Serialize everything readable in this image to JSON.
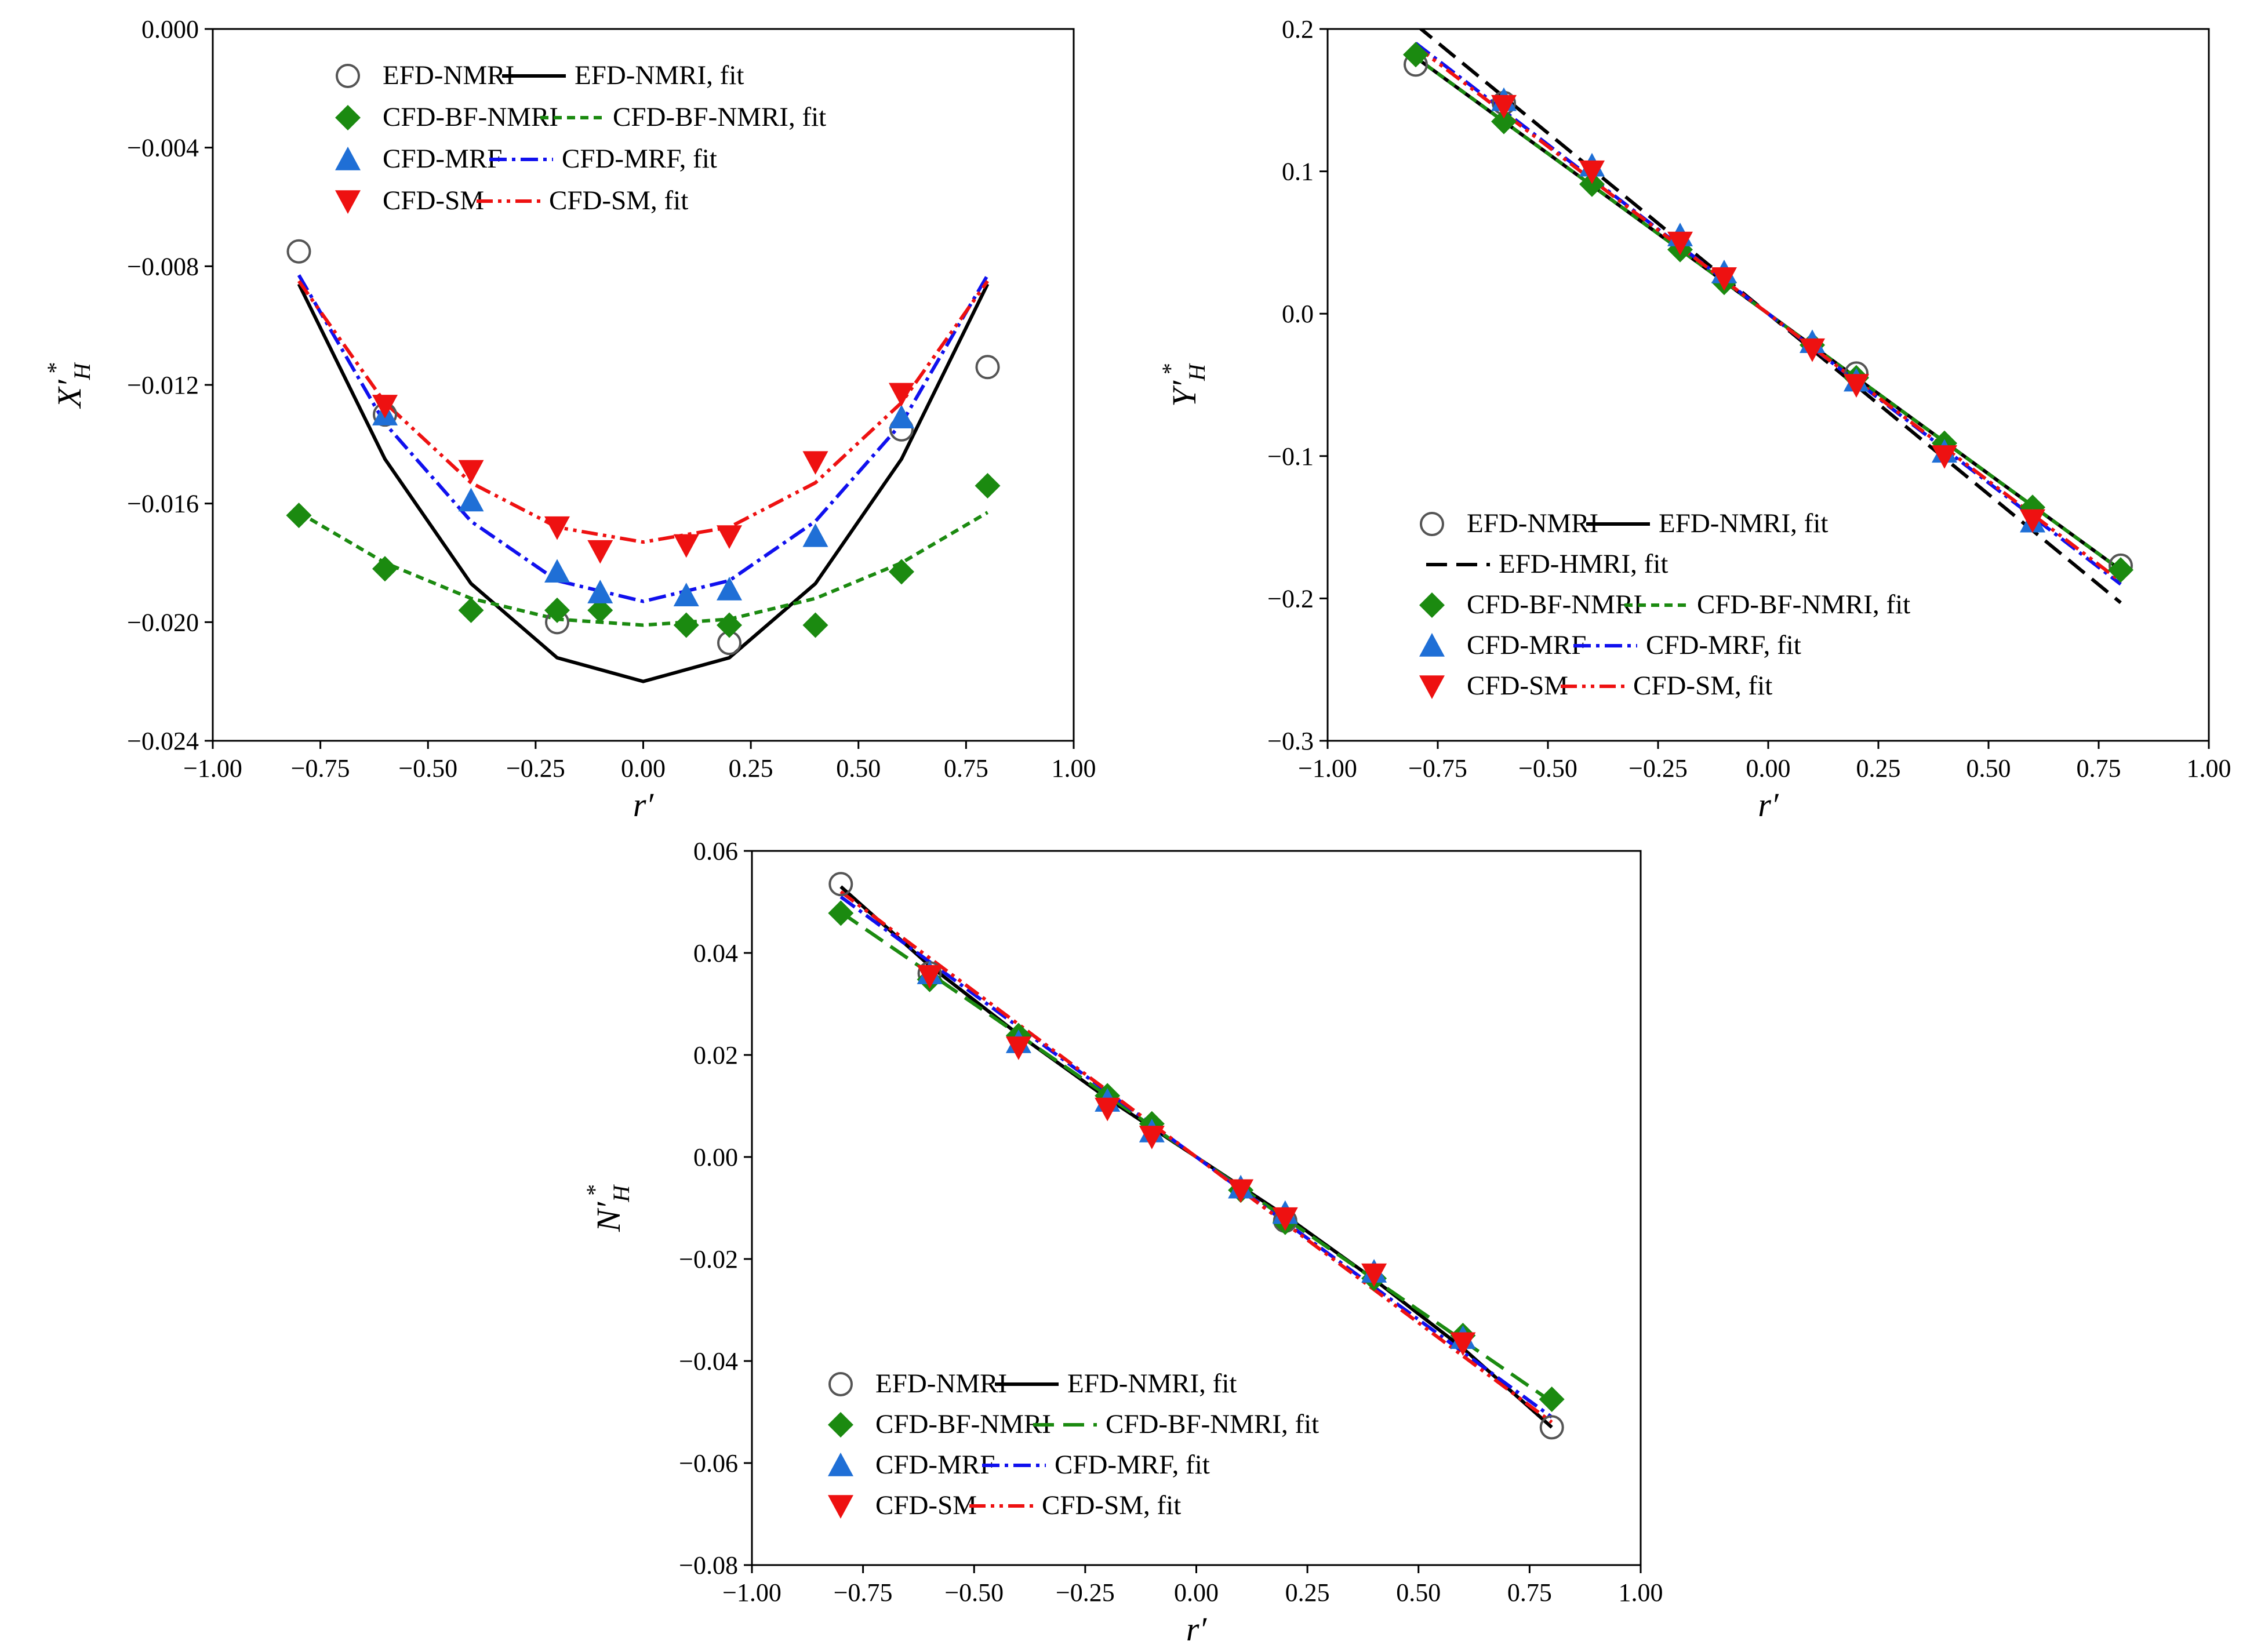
{
  "chart_data": [
    {
      "type": "scatter",
      "title": "",
      "xlabel": "r′",
      "ylabel": "X′H*",
      "xlim": [
        -1.0,
        1.0
      ],
      "ylim": [
        -0.024,
        0.0
      ],
      "grid": false,
      "legend_placement": "top-center",
      "xticks": [
        "−1.00",
        "−0.75",
        "−0.50",
        "−0.25",
        "0.00",
        "0.25",
        "0.50",
        "0.75",
        "1.00"
      ],
      "yticks": [
        "0.000",
        "−0.004",
        "−0.008",
        "−0.012",
        "−0.016",
        "−0.020",
        "−0.024"
      ],
      "legend": [
        "EFD-NMRI",
        "EFD-NMRI, fit",
        "CFD-BF-NMRI",
        "CFD-BF-NMRI, fit",
        "CFD-MRF",
        "CFD-MRF, fit",
        "CFD-SM",
        "CFD-SM, fit"
      ],
      "series": [
        {
          "name": "EFD-NMRI",
          "style": "scatter",
          "marker": "circle",
          "color": "#555555",
          "x": [
            -0.8,
            -0.6,
            -0.2,
            0.2,
            0.6,
            0.8
          ],
          "y": [
            -0.0075,
            -0.013,
            -0.02,
            -0.0207,
            -0.0135,
            -0.0114
          ]
        },
        {
          "name": "CFD-BF-NMRI",
          "style": "scatter",
          "marker": "diamond",
          "color": "#1b8a10",
          "x": [
            -0.8,
            -0.6,
            -0.4,
            -0.2,
            -0.1,
            0.1,
            0.2,
            0.4,
            0.6,
            0.8
          ],
          "y": [
            -0.0164,
            -0.0182,
            -0.0196,
            -0.0196,
            -0.0196,
            -0.0201,
            -0.0201,
            -0.0201,
            -0.0183,
            -0.0154
          ]
        },
        {
          "name": "CFD-MRF",
          "style": "scatter",
          "marker": "triangle-up",
          "color": "#1f6fd6",
          "x": [
            -0.6,
            -0.4,
            -0.2,
            -0.1,
            0.1,
            0.2,
            0.4,
            0.6
          ],
          "y": [
            -0.013,
            -0.0159,
            -0.0183,
            -0.019,
            -0.0191,
            -0.0189,
            -0.0171,
            -0.0131
          ]
        },
        {
          "name": "CFD-SM",
          "style": "scatter",
          "marker": "triangle-down",
          "color": "#ee1111",
          "x": [
            -0.6,
            -0.4,
            -0.2,
            -0.1,
            0.1,
            0.2,
            0.4,
            0.6
          ],
          "y": [
            -0.0127,
            -0.0149,
            -0.0168,
            -0.0176,
            -0.0174,
            -0.0171,
            -0.0146,
            -0.0123
          ]
        },
        {
          "name": "EFD-NMRI, fit",
          "style": "line",
          "dash": "solid",
          "color": "#000000",
          "x": [
            -0.8,
            -0.6,
            -0.4,
            -0.2,
            0.0,
            0.2,
            0.4,
            0.6,
            0.8
          ],
          "y": [
            -0.0086,
            -0.0145,
            -0.0187,
            -0.0212,
            -0.022,
            -0.0212,
            -0.0187,
            -0.0145,
            -0.0086
          ]
        },
        {
          "name": "CFD-BF-NMRI, fit",
          "style": "line",
          "dash": "short",
          "color": "#1b8a10",
          "x": [
            -0.8,
            -0.6,
            -0.4,
            -0.2,
            0.0,
            0.2,
            0.4,
            0.6,
            0.8
          ],
          "y": [
            -0.0163,
            -0.018,
            -0.0192,
            -0.0199,
            -0.0201,
            -0.0199,
            -0.0192,
            -0.018,
            -0.0163
          ]
        },
        {
          "name": "CFD-MRF, fit",
          "style": "line",
          "dash": "dashdot",
          "color": "#1010ee",
          "x": [
            -0.8,
            -0.6,
            -0.4,
            -0.2,
            0.0,
            0.2,
            0.4,
            0.6,
            0.8
          ],
          "y": [
            -0.0083,
            -0.0133,
            -0.0166,
            -0.0186,
            -0.0193,
            -0.0186,
            -0.0166,
            -0.0133,
            -0.0083
          ]
        },
        {
          "name": "CFD-SM, fit",
          "style": "line",
          "dash": "dashdotdot",
          "color": "#ee1111",
          "x": [
            -0.8,
            -0.6,
            -0.4,
            -0.2,
            0.0,
            0.2,
            0.4,
            0.6,
            0.8
          ],
          "y": [
            -0.0085,
            -0.0126,
            -0.0153,
            -0.0168,
            -0.0173,
            -0.0168,
            -0.0153,
            -0.0126,
            -0.0085
          ]
        }
      ]
    },
    {
      "type": "scatter",
      "title": "",
      "xlabel": "r′",
      "ylabel": "Y′H*",
      "xlim": [
        -1.0,
        1.0
      ],
      "ylim": [
        -0.3,
        0.2
      ],
      "grid": false,
      "legend_placement": "bottom-left",
      "xticks": [
        "−1.00",
        "−0.75",
        "−0.50",
        "−0.25",
        "0.00",
        "0.25",
        "0.50",
        "0.75",
        "1.00"
      ],
      "yticks": [
        "0.2",
        "0.1",
        "0.0",
        "−0.1",
        "−0.2",
        "−0.3"
      ],
      "legend": [
        "EFD-NMRI",
        "EFD-NMRI, fit",
        "EFD-HMRI, fit",
        "CFD-BF-NMRI",
        "CFD-BF-NMRI, fit",
        "CFD-MRF",
        "CFD-MRF, fit",
        "CFD-SM",
        "CFD-SM, fit"
      ],
      "series": [
        {
          "name": "EFD-NMRI",
          "style": "scatter",
          "marker": "circle",
          "color": "#555555",
          "x": [
            -0.8,
            -0.6,
            0.2,
            0.8
          ],
          "y": [
            0.175,
            0.148,
            -0.042,
            -0.177
          ]
        },
        {
          "name": "CFD-BF-NMRI",
          "style": "scatter",
          "marker": "diamond",
          "color": "#1b8a10",
          "x": [
            -0.8,
            -0.6,
            -0.4,
            -0.2,
            -0.1,
            0.1,
            0.2,
            0.4,
            0.6,
            0.8
          ],
          "y": [
            0.182,
            0.135,
            0.091,
            0.045,
            0.022,
            -0.022,
            -0.045,
            -0.091,
            -0.136,
            -0.18
          ]
        },
        {
          "name": "CFD-MRF",
          "style": "scatter",
          "marker": "triangle-up",
          "color": "#1f6fd6",
          "x": [
            -0.6,
            -0.4,
            -0.2,
            -0.1,
            0.1,
            0.2,
            0.4,
            0.6
          ],
          "y": [
            0.15,
            0.104,
            0.055,
            0.029,
            -0.02,
            -0.047,
            -0.097,
            -0.146
          ]
        },
        {
          "name": "CFD-SM",
          "style": "scatter",
          "marker": "triangle-down",
          "color": "#ee1111",
          "x": [
            -0.6,
            -0.4,
            -0.2,
            -0.1,
            0.1,
            0.2,
            0.4,
            0.6
          ],
          "y": [
            0.146,
            0.1,
            0.05,
            0.025,
            -0.025,
            -0.05,
            -0.1,
            -0.145
          ]
        },
        {
          "name": "EFD-NMRI, fit",
          "style": "line",
          "dash": "solid",
          "color": "#000000",
          "x": [
            -0.8,
            0.8
          ],
          "y": [
            0.18,
            -0.18
          ]
        },
        {
          "name": "EFD-HMRI, fit",
          "style": "line",
          "dash": "longdash",
          "color": "#000000",
          "x": [
            -0.8,
            0.8
          ],
          "y": [
            0.203,
            -0.203
          ]
        },
        {
          "name": "CFD-BF-NMRI, fit",
          "style": "line",
          "dash": "short",
          "color": "#1b8a10",
          "x": [
            -0.8,
            0.8
          ],
          "y": [
            0.18,
            -0.18
          ]
        },
        {
          "name": "CFD-MRF, fit",
          "style": "line",
          "dash": "dashdot",
          "color": "#1010ee",
          "x": [
            -0.8,
            0.8
          ],
          "y": [
            0.19,
            -0.19
          ]
        },
        {
          "name": "CFD-SM, fit",
          "style": "line",
          "dash": "dashdotdot",
          "color": "#ee1111",
          "x": [
            -0.8,
            0.8
          ],
          "y": [
            0.188,
            -0.188
          ]
        }
      ]
    },
    {
      "type": "scatter",
      "title": "",
      "xlabel": "r′",
      "ylabel": "N′H*",
      "xlim": [
        -1.0,
        1.0
      ],
      "ylim": [
        -0.08,
        0.06
      ],
      "grid": false,
      "legend_placement": "bottom-left",
      "xticks": [
        "−1.00",
        "−0.75",
        "−0.50",
        "−0.25",
        "0.00",
        "0.25",
        "0.50",
        "0.75",
        "1.00"
      ],
      "yticks": [
        "0.06",
        "0.04",
        "0.02",
        "0.00",
        "−0.02",
        "−0.04",
        "−0.06",
        "−0.08"
      ],
      "legend": [
        "EFD-NMRI",
        "EFD-NMRI, fit",
        "CFD-BF-NMRI",
        "CFD-BF-NMRI, fit",
        "CFD-MRF",
        "CFD-MRF, fit",
        "CFD-SM",
        "CFD-SM, fit"
      ],
      "series": [
        {
          "name": "EFD-NMRI",
          "style": "scatter",
          "marker": "circle",
          "color": "#555555",
          "x": [
            -0.8,
            -0.6,
            0.2,
            0.8
          ],
          "y": [
            0.0535,
            0.036,
            -0.0125,
            -0.053
          ]
        },
        {
          "name": "CFD-BF-NMRI",
          "style": "scatter",
          "marker": "diamond",
          "color": "#1b8a10",
          "x": [
            -0.8,
            -0.6,
            -0.4,
            -0.2,
            -0.1,
            0.1,
            0.2,
            0.4,
            0.6,
            0.8
          ],
          "y": [
            0.0478,
            0.0348,
            0.0238,
            0.012,
            0.0065,
            -0.0065,
            -0.0128,
            -0.0238,
            -0.035,
            -0.0475
          ]
        },
        {
          "name": "CFD-MRF",
          "style": "scatter",
          "marker": "triangle-up",
          "color": "#1f6fd6",
          "x": [
            -0.6,
            -0.4,
            -0.2,
            -0.1,
            0.1,
            0.2,
            0.4,
            0.6
          ],
          "y": [
            0.036,
            0.0225,
            0.011,
            0.005,
            -0.006,
            -0.011,
            -0.0225,
            -0.0355
          ]
        },
        {
          "name": "CFD-SM",
          "style": "scatter",
          "marker": "triangle-down",
          "color": "#ee1111",
          "x": [
            -0.6,
            -0.4,
            -0.2,
            -0.1,
            0.1,
            0.2,
            0.4,
            0.6
          ],
          "y": [
            0.0355,
            0.0215,
            0.0095,
            0.004,
            -0.0065,
            -0.012,
            -0.023,
            -0.0365
          ]
        },
        {
          "name": "EFD-NMRI, fit",
          "style": "line",
          "dash": "solid",
          "color": "#000000",
          "x": [
            -0.8,
            -0.6,
            -0.4,
            -0.2,
            0.0,
            0.2,
            0.4,
            0.6,
            0.8
          ],
          "y": [
            0.053,
            0.0375,
            0.024,
            0.0115,
            0.0,
            -0.0115,
            -0.024,
            -0.0375,
            -0.053
          ]
        },
        {
          "name": "CFD-BF-NMRI, fit",
          "style": "line",
          "dash": "longdash",
          "color": "#1b8a10",
          "x": [
            -0.8,
            0.8
          ],
          "y": [
            0.048,
            -0.048
          ]
        },
        {
          "name": "CFD-MRF, fit",
          "style": "line",
          "dash": "dashdot",
          "color": "#1010ee",
          "x": [
            -0.8,
            0.8
          ],
          "y": [
            0.051,
            -0.051
          ]
        },
        {
          "name": "CFD-SM, fit",
          "style": "line",
          "dash": "dashdotdot",
          "color": "#ee1111",
          "x": [
            -0.8,
            0.8
          ],
          "y": [
            0.052,
            -0.052
          ]
        }
      ]
    }
  ]
}
